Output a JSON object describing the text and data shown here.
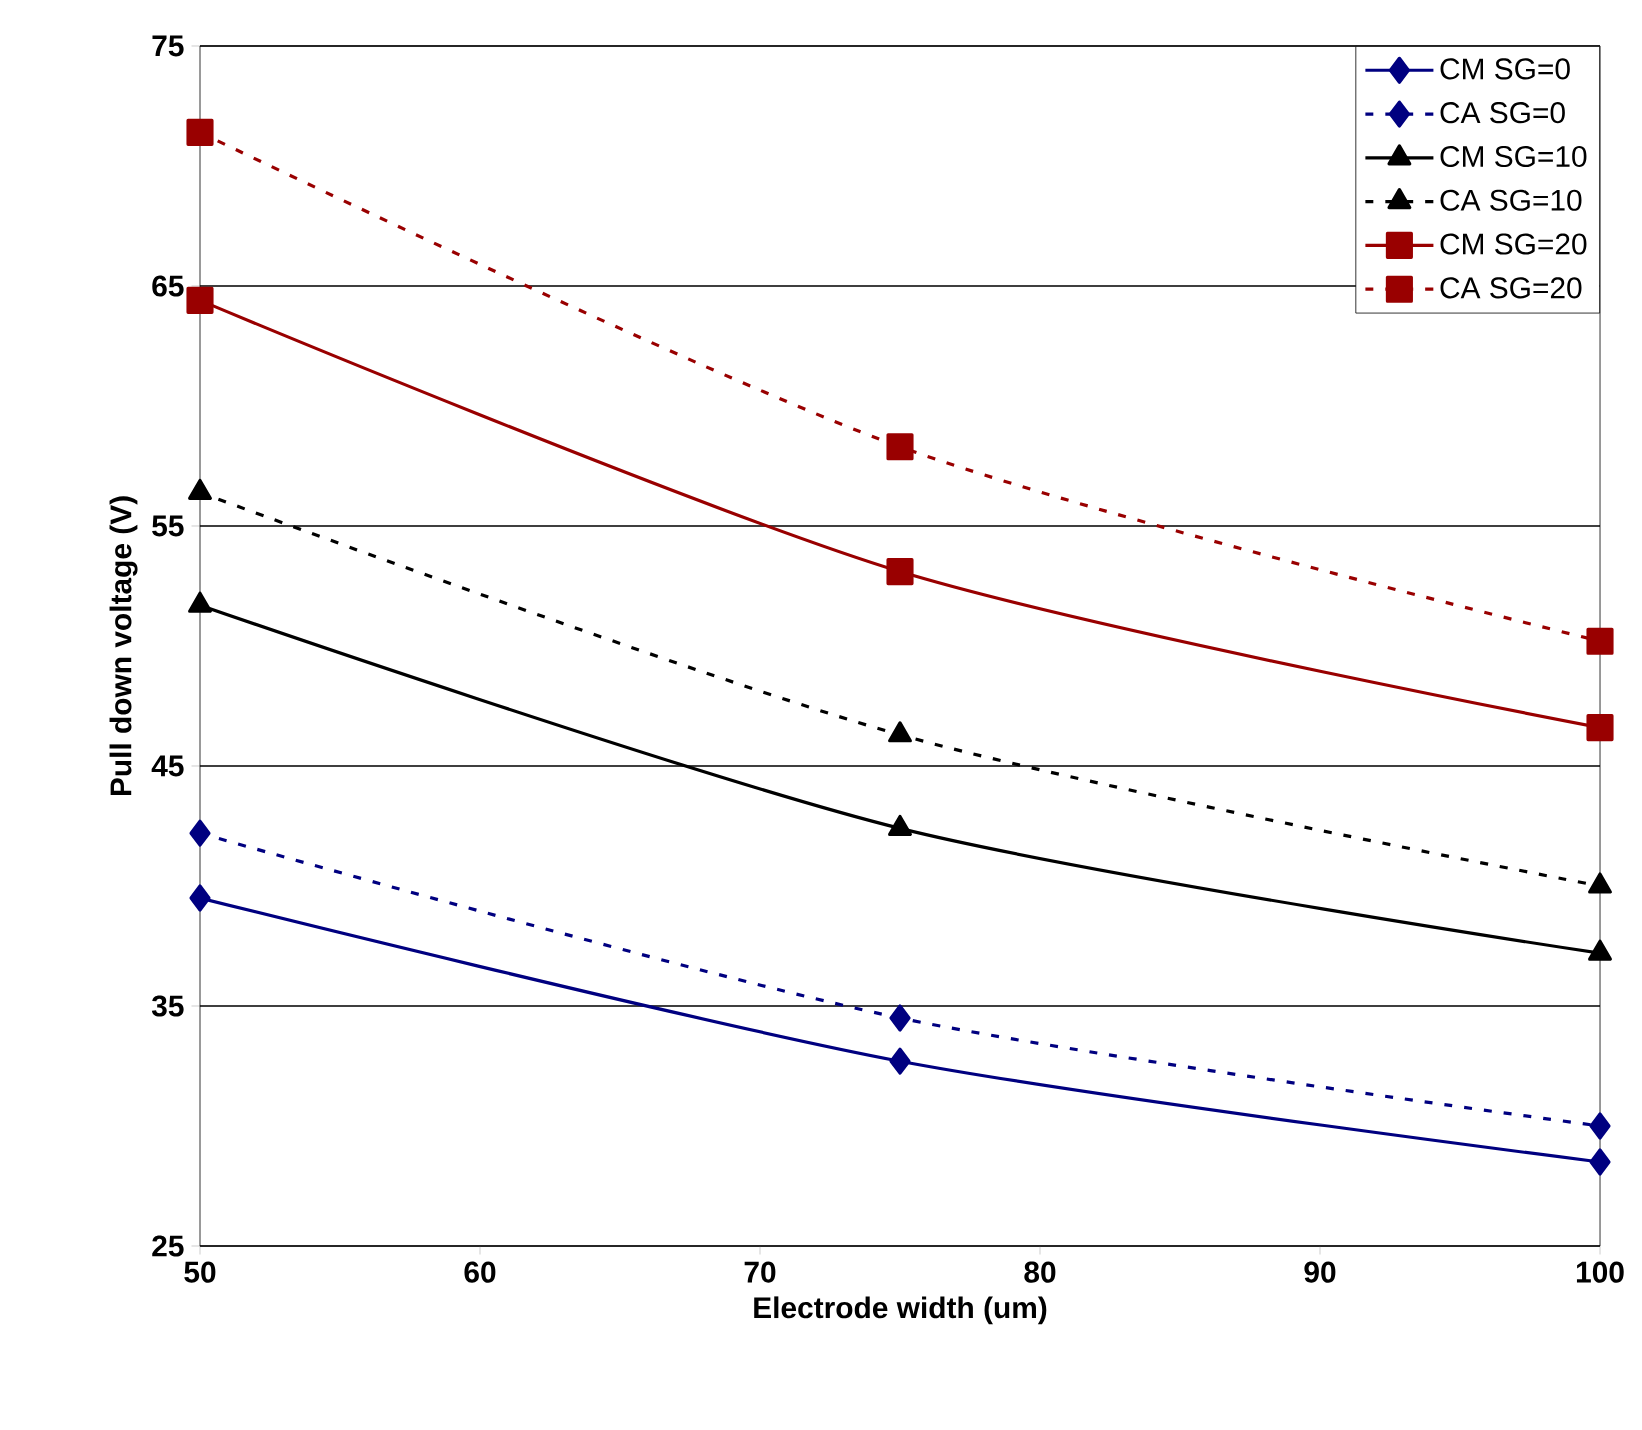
{
  "chart_data": {
    "type": "line",
    "xlabel": "Electrode width (um)",
    "ylabel": "Pull down voltage (V)",
    "x": [
      50,
      75,
      100
    ],
    "xlim": [
      50,
      100
    ],
    "xticks": [
      50,
      60,
      70,
      80,
      90,
      100
    ],
    "ylim": [
      25,
      75
    ],
    "yticks": [
      25,
      35,
      45,
      55,
      65,
      75
    ],
    "grid": "y",
    "legend": "top right",
    "series": [
      {
        "name": "CM SG=0",
        "color": "#000080",
        "marker": "diamond",
        "line_style": "solid",
        "values": [
          39.5,
          32.7,
          28.5
        ]
      },
      {
        "name": "CA SG=0",
        "color": "#000080",
        "marker": "diamond",
        "line_style": "dashed",
        "values": [
          42.2,
          34.5,
          30.0
        ]
      },
      {
        "name": "CM SG=10",
        "color": "#000000",
        "marker": "triangle",
        "line_style": "solid",
        "values": [
          51.7,
          42.4,
          37.2
        ]
      },
      {
        "name": "CA SG=10",
        "color": "#000000",
        "marker": "triangle",
        "line_style": "dashed",
        "values": [
          56.4,
          46.3,
          40.0
        ]
      },
      {
        "name": "CM SG=20",
        "color": "#990000",
        "marker": "square",
        "line_style": "solid",
        "values": [
          64.4,
          53.1,
          46.6
        ]
      },
      {
        "name": "CA SG=20",
        "color": "#990000",
        "marker": "square",
        "line_style": "dashed",
        "values": [
          71.4,
          58.3,
          50.2
        ]
      }
    ]
  }
}
